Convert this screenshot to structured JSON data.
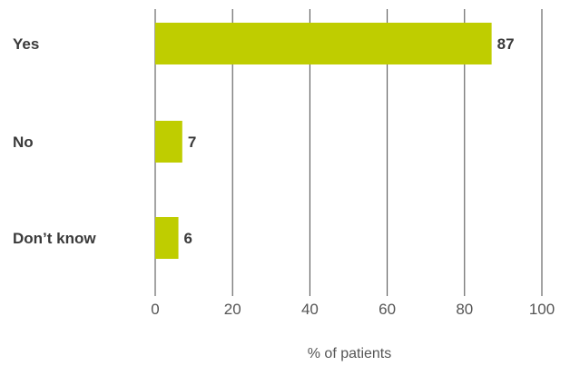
{
  "chart_data": {
    "type": "bar",
    "orientation": "horizontal",
    "categories": [
      "Yes",
      "No",
      "Don’t know"
    ],
    "values": [
      87,
      7,
      6
    ],
    "xlabel": "% of patients",
    "ylabel": "",
    "xlim": [
      0,
      100
    ],
    "xticks": [
      0,
      20,
      40,
      60,
      80,
      100
    ],
    "grid": true,
    "bar_color": "#bfcd00",
    "text_color": "#3a3a3a"
  }
}
